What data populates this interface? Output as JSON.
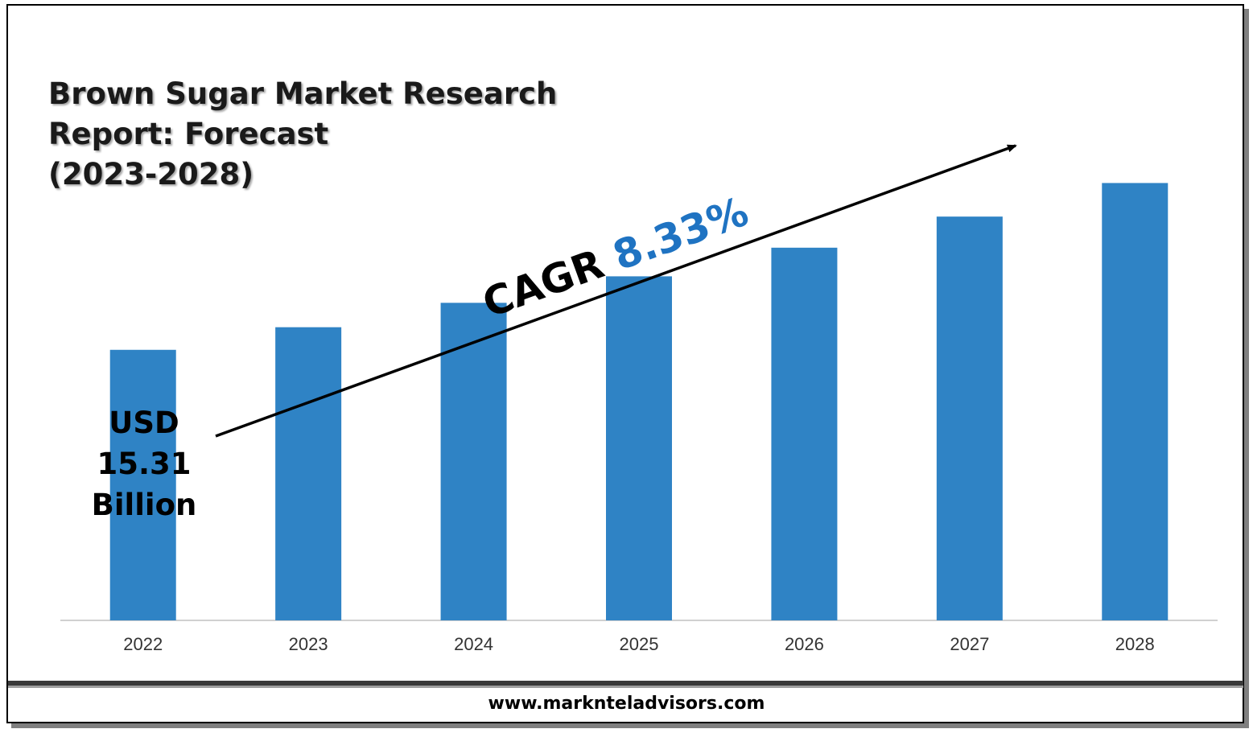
{
  "title_lines": [
    "Brown Sugar Market Research",
    "Report: Forecast",
    "(2023-2028)"
  ],
  "start_value": {
    "line1": "USD",
    "line2": "15.31",
    "line3": "Billion"
  },
  "cagr": {
    "label": "CAGR",
    "value": "8.33%",
    "value_color": "#1f73c2"
  },
  "footer": "www.marknteladvisors.com",
  "colors": {
    "bar": "#2f83c5",
    "axis": "#d0d0d0",
    "tick_text": "#333333"
  },
  "chart_data": {
    "type": "bar",
    "title": "Brown Sugar Market Research Report: Forecast (2023-2028)",
    "categories": [
      "2022",
      "2023",
      "2024",
      "2025",
      "2026",
      "2027",
      "2028"
    ],
    "values": [
      15.31,
      16.59,
      17.97,
      19.47,
      21.09,
      22.85,
      24.75
    ],
    "unit": "USD Billion",
    "ylim": [
      0,
      26
    ],
    "grid": false,
    "legend": "none"
  }
}
